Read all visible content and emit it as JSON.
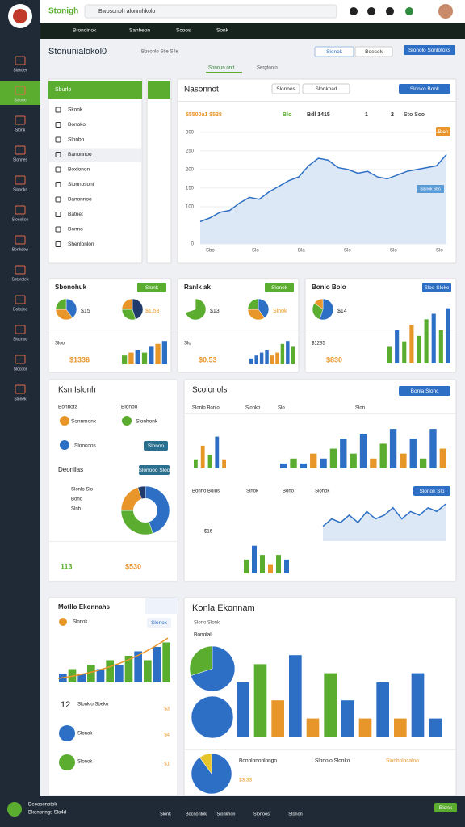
{
  "topbar": {
    "brand": "Stonigh",
    "search": "Bwosonoh alonmhkolo"
  },
  "navbar": {
    "items": [
      "Bronoinok",
      "Sanbeon",
      "Scoos",
      "Sonk"
    ]
  },
  "sidebar": {
    "items": [
      "Slanoer",
      "Slonoe",
      "Slonk",
      "Slonnes",
      "Slonoks",
      "Slonokon",
      "Bonksow",
      "Sotsrotek",
      "Bolosnc",
      "Slocnoc",
      "Sloccor",
      "Slonek"
    ]
  },
  "header": {
    "title": "Stonunialokol0",
    "subtitle": "Bosonlo Stle S Ie",
    "buttons": [
      "Slonok",
      "Boesek",
      "Slonolo Sonlotoxs"
    ]
  },
  "tabs": [
    "Sonoun ontt",
    "Sergtoolo"
  ],
  "nav_panel": {
    "title": "Sburlo",
    "items": [
      "Skonk",
      "Bonoko",
      "Slonbo",
      "Banonnoo",
      "Boxlonon",
      "Slonnosont",
      "Banonnoo",
      "Batnet",
      "Bonno",
      "Shenlonlon"
    ]
  },
  "main_chart": {
    "type": "line",
    "title": "Nasonnot",
    "filter": "Slonnos",
    "select": "Slonkoad",
    "button": "Slonko Bonk",
    "stats": [
      "$5500a1 $538",
      "Blo",
      "Bdl 1415",
      "1",
      "2",
      "Sto Sco"
    ],
    "badge": "Blon",
    "tag": "Slanok Sbo",
    "color": "#2d6fc4",
    "values": [
      60,
      70,
      85,
      90,
      110,
      125,
      120,
      140,
      155,
      170,
      180,
      210,
      230,
      225,
      205,
      200,
      190,
      195,
      180,
      175,
      185,
      195,
      200,
      205,
      210,
      240
    ],
    "ylim": [
      0,
      330
    ],
    "yticks": [
      0,
      100,
      150,
      200,
      250,
      300
    ],
    "xlabels": [
      "Sbo",
      "Slo",
      "Bla",
      "Slo",
      "Slo",
      "Slo"
    ]
  },
  "cards": [
    {
      "title": "Sbonohuk",
      "button": "Slonk",
      "value": "$1336",
      "note": "Sloo",
      "pie_labels": [
        "$15",
        "$1.53"
      ],
      "pies": [
        {
          "values": [
            40,
            35,
            25
          ],
          "colors": [
            "#2d6fc4",
            "#e8962a",
            "#5aad2e"
          ]
        },
        {
          "values": [
            45,
            30,
            25
          ],
          "colors": [
            "#1f3a6b",
            "#5aad2e",
            "#e8962a"
          ]
        }
      ],
      "bars": {
        "type": "bar",
        "values": [
          3,
          4,
          5,
          4,
          6,
          7,
          8
        ],
        "ylim": [
          0,
          10
        ],
        "colors": [
          "#5aad2e",
          "#e8962a",
          "#2d6fc4",
          "#5aad2e",
          "#2d6fc4",
          "#e8962a",
          "#2d6fc4"
        ]
      }
    },
    {
      "title": "Ranlk ak",
      "button": "Slonok",
      "value": "$0.53",
      "note": "Slo",
      "pie_labels": [
        "$13",
        "Slnok"
      ],
      "pies": [
        {
          "values": [
            70,
            30
          ],
          "colors": [
            "#5aad2e",
            "#ffffff"
          ]
        },
        {
          "values": [
            40,
            35,
            25
          ],
          "colors": [
            "#2d6fc4",
            "#e8962a",
            "#5aad2e"
          ]
        }
      ],
      "bars": {
        "type": "bar",
        "values": [
          2,
          3,
          4,
          5,
          3,
          4,
          7,
          8,
          6
        ],
        "ylim": [
          0,
          10
        ],
        "colors": [
          "#2d6fc4",
          "#2d6fc4",
          "#2d6fc4",
          "#2d6fc4",
          "#e8962a",
          "#e8962a",
          "#5aad2e",
          "#2d6fc4",
          "#5aad2e"
        ]
      }
    },
    {
      "title": "Bonlo Bolo",
      "button": "Sloo Sloke",
      "value": "$830",
      "note": "$1235",
      "pie_labels": [
        "$14"
      ],
      "pies": [
        {
          "values": [
            55,
            30,
            15
          ],
          "colors": [
            "#2d6fc4",
            "#5aad2e",
            "#e8962a"
          ]
        }
      ],
      "bars": {
        "type": "bar",
        "values": [
          3,
          6,
          4,
          7,
          5,
          8,
          9,
          6,
          10
        ],
        "ylim": [
          0,
          12
        ],
        "colors": [
          "#5aad2e",
          "#2d6fc4",
          "#5aad2e",
          "#e8962a",
          "#5aad2e",
          "#5aad2e",
          "#2d6fc4",
          "#5aad2e",
          "#2d6fc4"
        ]
      }
    }
  ],
  "left_card": {
    "title": "Ksn Islonh",
    "items": [
      "Bonnota",
      "Blonbo",
      "Sonnmonk",
      "Slonhonk",
      "Sloncoos"
    ],
    "button": "Slonoo",
    "subtitle": "Deonilas",
    "button2": "Slonooo Sloo",
    "legend": [
      "Slonlo Slo",
      "Bono",
      "Slnb"
    ],
    "values": [
      "113",
      "$530"
    ],
    "donut": {
      "type": "pie",
      "values": [
        45,
        30,
        20,
        5
      ],
      "colors": [
        "#2d6fc4",
        "#5aad2e",
        "#e8962a",
        "#1f3a6b"
      ]
    }
  },
  "right_card": {
    "title": "Scolonols",
    "button": "Bonla Slonc",
    "columns": [
      "Slonlo Bonlo",
      "Slonko",
      "Slo",
      "Slon"
    ],
    "labels": [
      "Bonno Bolds",
      "Slnok",
      "Bono",
      "Slonok",
      "$16"
    ],
    "button2": "Slonok Slo",
    "bars_a": {
      "type": "bar",
      "values": [
        2,
        5,
        3,
        7,
        2
      ],
      "ylim": [
        0,
        8
      ],
      "colors": [
        "#5aad2e",
        "#e8962a",
        "#5aad2e",
        "#2d6fc4",
        "#e8962a"
      ]
    },
    "bars_b": {
      "type": "bar",
      "values": [
        1,
        2,
        1,
        3,
        2,
        4,
        6,
        3,
        7,
        2,
        5,
        8,
        3,
        6,
        2,
        8,
        4
      ],
      "ylim": [
        0,
        9
      ],
      "colors": [
        "#2d6fc4",
        "#5aad2e",
        "#2d6fc4",
        "#e8962a",
        "#2d6fc4",
        "#5aad2e",
        "#2d6fc4",
        "#5aad2e",
        "#2d6fc4",
        "#e8962a",
        "#5aad2e",
        "#2d6fc4",
        "#e8962a",
        "#2d6fc4",
        "#5aad2e",
        "#2d6fc4",
        "#e8962a"
      ]
    },
    "bars_c": {
      "type": "bar",
      "values": [
        3,
        6,
        4,
        2,
        4,
        3
      ],
      "ylim": [
        0,
        7
      ],
      "colors": [
        "#5aad2e",
        "#2d6fc4",
        "#5aad2e",
        "#e8962a",
        "#5aad2e",
        "#2d6fc4"
      ]
    },
    "line": {
      "type": "line",
      "values": [
        4,
        6,
        5,
        7,
        5,
        8,
        6,
        7,
        9,
        6,
        8,
        7,
        9,
        8,
        10
      ],
      "ylim": [
        0,
        12
      ],
      "color": "#2d6fc4"
    }
  },
  "bottom_left": {
    "title": "Motllo Ekonnahs",
    "tag": "Slonok",
    "items": [
      "Slonok",
      "Slonklo Sbeko",
      "Slonok",
      "Slonok"
    ],
    "values": [
      "12",
      "$3",
      "$4",
      "$1"
    ],
    "bars": {
      "type": "bar",
      "values": [
        2,
        3,
        2,
        4,
        3,
        5,
        4,
        6,
        7,
        5,
        8,
        9
      ],
      "ylim": [
        0,
        10
      ],
      "colors": [
        "#2d6fc4",
        "#5aad2e",
        "#2d6fc4",
        "#5aad2e",
        "#2d6fc4",
        "#5aad2e",
        "#2d6fc4",
        "#5aad2e",
        "#2d6fc4",
        "#5aad2e",
        "#2d6fc4",
        "#5aad2e"
      ]
    }
  },
  "bottom_right": {
    "title": "Konla Ekonnam",
    "subtitle": "Slono Slonk",
    "label": "Bonolal",
    "footer": [
      "Bonolonoblongo",
      "$3.33",
      "Slonolo Slonko",
      "Slonbolocaloo"
    ],
    "pies": [
      {
        "values": [
          70,
          30
        ],
        "colors": [
          "#2d6fc4",
          "#5aad2e"
        ]
      },
      {
        "values": [
          100
        ],
        "colors": [
          "#2d6fc4"
        ]
      },
      {
        "values": [
          90,
          10
        ],
        "colors": [
          "#2d6fc4",
          "#e8c52a"
        ]
      }
    ],
    "bars": {
      "type": "bar",
      "values": [
        6,
        8,
        4,
        9,
        2,
        7,
        4,
        2,
        6,
        2,
        7,
        2
      ],
      "ylim": [
        0,
        10
      ],
      "colors": [
        "#2d6fc4",
        "#5aad2e",
        "#e8962a",
        "#2d6fc4",
        "#e8962a",
        "#5aad2e",
        "#2d6fc4",
        "#e8962a",
        "#2d6fc4",
        "#e8962a",
        "#2d6fc4",
        "#2d6fc4"
      ]
    }
  },
  "bottombar": {
    "brand": "Deoosonotok",
    "sub": "Bkonpnngs Slo4d",
    "items": [
      "Slonk",
      "Bocnontok",
      "Slonkhon",
      "Slonoos",
      "Stonon"
    ],
    "button": "Blonk"
  }
}
